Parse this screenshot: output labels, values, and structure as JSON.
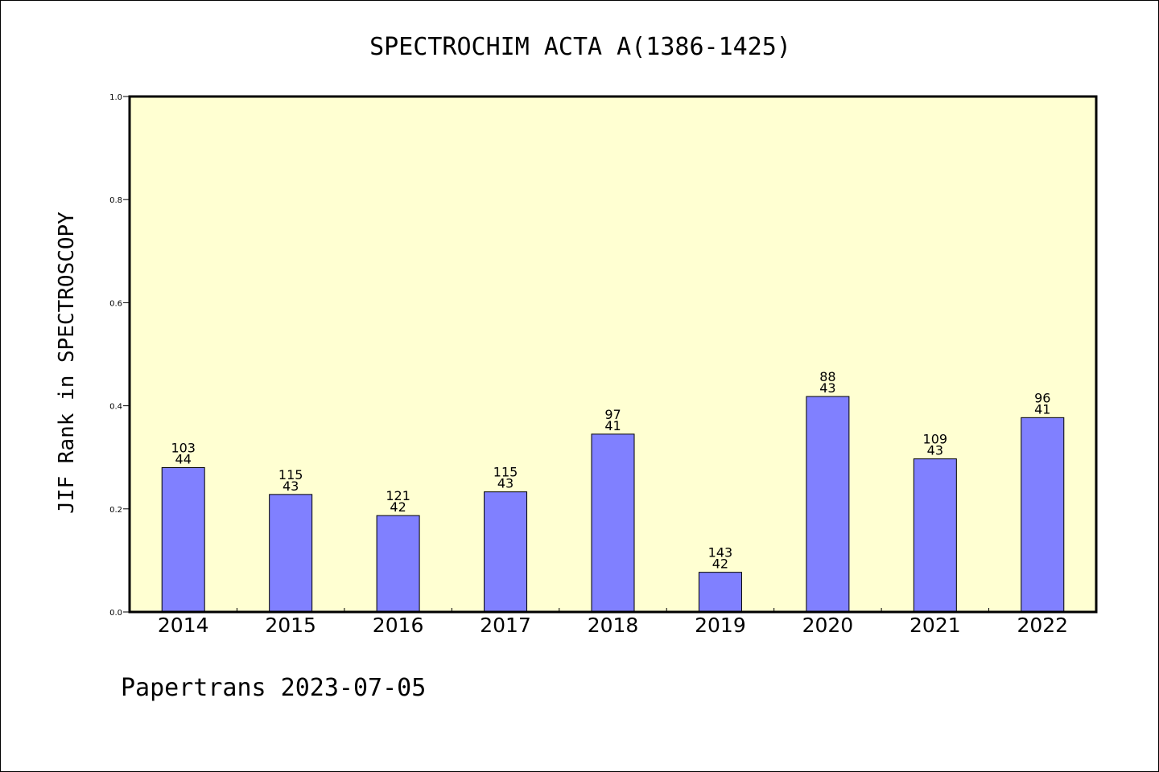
{
  "chart_data": {
    "type": "bar",
    "title": "SPECTROCHIM ACTA A(1386-1425)",
    "ylabel": "JIF Rank in SPECTROSCOPY",
    "xlabel": "",
    "ylim": [
      0.0,
      1.0
    ],
    "yticks": [
      "0.0",
      "0.2",
      "0.4",
      "0.6",
      "0.8",
      "1.0"
    ],
    "categories": [
      "2014",
      "2015",
      "2016",
      "2017",
      "2018",
      "2019",
      "2020",
      "2021",
      "2022"
    ],
    "values": [
      0.28,
      0.228,
      0.187,
      0.233,
      0.345,
      0.077,
      0.418,
      0.297,
      0.377
    ],
    "labels_top": [
      "103",
      "115",
      "121",
      "115",
      "97",
      "143",
      "88",
      "109",
      "96"
    ],
    "labels_bottom": [
      "44",
      "43",
      "42",
      "43",
      "41",
      "42",
      "43",
      "43",
      "41"
    ],
    "grid": false,
    "colors": {
      "plot_bg": "#ffffd2",
      "bar": "#8080ff",
      "axis": "#000000"
    }
  },
  "footer": "Papertrans 2023-07-05"
}
